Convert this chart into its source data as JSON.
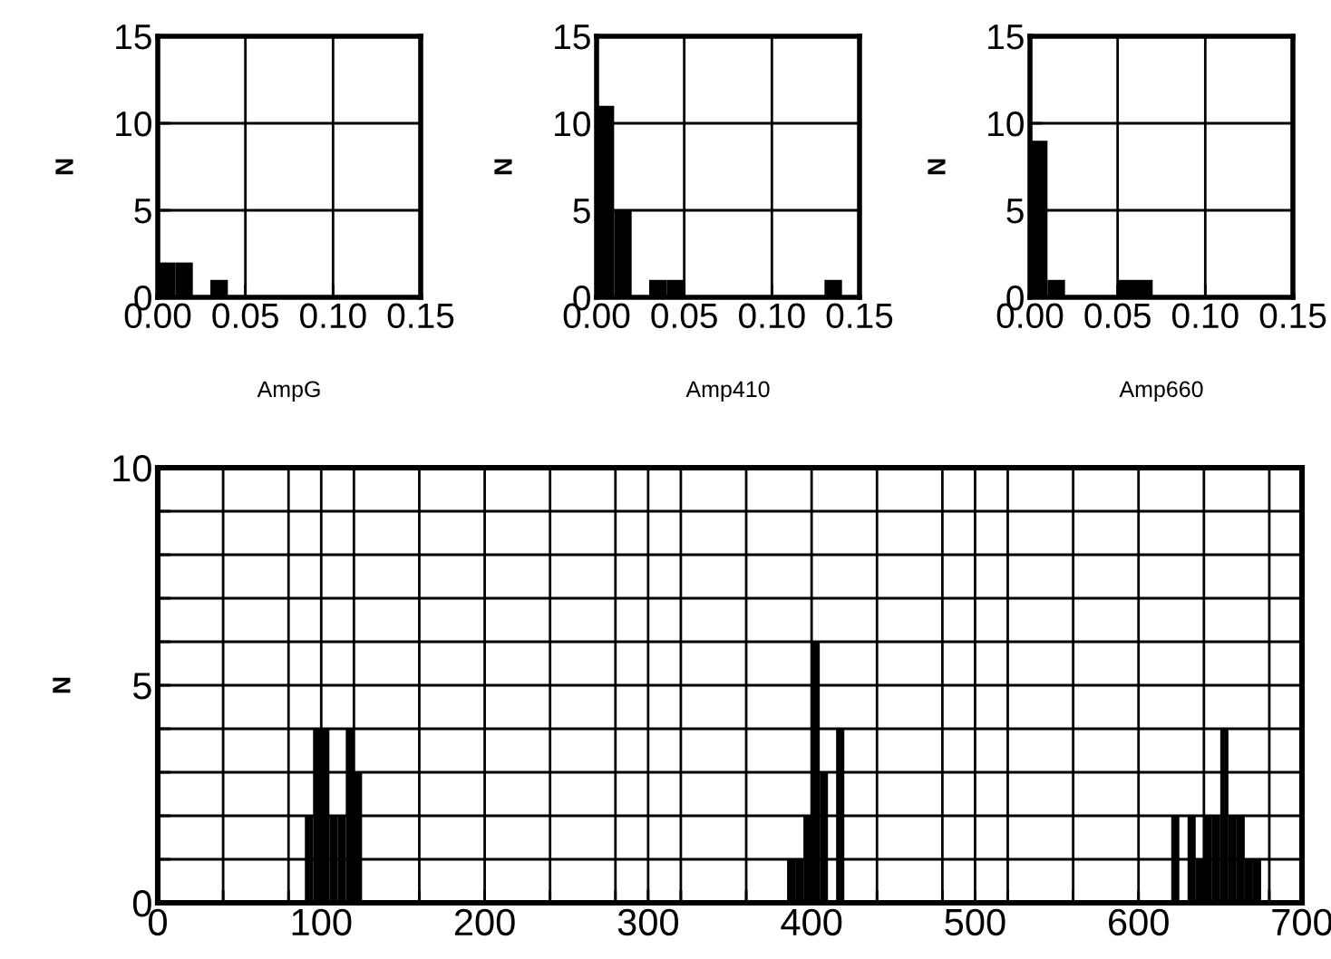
{
  "chart_data": [
    {
      "type": "histogram",
      "xlabel": "AmpG",
      "ylabel": "N",
      "color": "#000000",
      "bins": [
        0,
        0.01,
        0.02,
        0.03,
        0.04
      ],
      "values": [
        2,
        2,
        0,
        1
      ],
      "xlim": [
        0,
        0.15
      ],
      "ylim": [
        0,
        15
      ],
      "xticks": [
        {
          "value": 0,
          "label": "0.00"
        },
        {
          "value": 0.05,
          "label": "0.05"
        },
        {
          "value": 0.1,
          "label": "0.10"
        },
        {
          "value": 0.15,
          "label": "0.15"
        }
      ],
      "yticks": [
        0,
        5,
        10,
        15
      ],
      "grid": true
    },
    {
      "type": "histogram",
      "xlabel": "Amp410",
      "ylabel": "N",
      "color": "#000000",
      "bins": [
        0,
        0.01,
        0.02,
        0.03,
        0.04,
        0.05,
        0.13,
        0.14
      ],
      "values": [
        11,
        5,
        0,
        1,
        1,
        0,
        1
      ],
      "xlim": [
        0,
        0.15
      ],
      "ylim": [
        0,
        15
      ],
      "xticks": [
        {
          "value": 0,
          "label": "0.00"
        },
        {
          "value": 0.05,
          "label": "0.05"
        },
        {
          "value": 0.1,
          "label": "0.10"
        },
        {
          "value": 0.15,
          "label": "0.15"
        }
      ],
      "yticks": [
        0,
        5,
        10,
        15
      ],
      "grid": true
    },
    {
      "type": "histogram",
      "xlabel": "Amp660",
      "ylabel": "N",
      "color": "#000000",
      "bins": [
        0,
        0.01,
        0.02,
        0.05,
        0.06,
        0.07
      ],
      "values": [
        9,
        1,
        0,
        1,
        1
      ],
      "xlim": [
        0,
        0.15
      ],
      "ylim": [
        0,
        15
      ],
      "xticks": [
        {
          "value": 0,
          "label": "0.00"
        },
        {
          "value": 0.05,
          "label": "0.05"
        },
        {
          "value": 0.1,
          "label": "0.10"
        },
        {
          "value": 0.15,
          "label": "0.15"
        }
      ],
      "yticks": [
        0,
        5,
        10,
        15
      ],
      "grid": true
    },
    {
      "type": "histogram",
      "ylabel": "N",
      "color": "#000000",
      "bins": [
        90,
        95,
        100,
        105,
        110,
        115,
        120,
        125,
        385,
        390,
        395,
        400,
        405,
        410,
        415,
        420,
        620,
        625,
        630,
        635,
        640,
        645,
        650,
        655,
        660,
        665,
        670,
        675
      ],
      "values": [
        2,
        4,
        4,
        2,
        2,
        4,
        3,
        0,
        1,
        1,
        2,
        6,
        3,
        0,
        4,
        0,
        2,
        0,
        2,
        1,
        2,
        2,
        4,
        2,
        2,
        1,
        1
      ],
      "xlim": [
        0,
        700
      ],
      "ylim": [
        0,
        10
      ],
      "xticks": [
        0,
        {
          "value": 40,
          "label": null
        },
        {
          "value": 80,
          "label": null
        },
        100,
        {
          "value": 120,
          "label": null
        },
        {
          "value": 160,
          "label": null
        },
        200,
        {
          "value": 240,
          "label": null
        },
        {
          "value": 280,
          "label": null
        },
        300,
        {
          "value": 320,
          "label": null
        },
        {
          "value": 360,
          "label": null
        },
        400,
        {
          "value": 440,
          "label": null
        },
        {
          "value": 480,
          "label": null
        },
        500,
        {
          "value": 520,
          "label": null
        },
        {
          "value": 560,
          "label": null
        },
        600,
        {
          "value": 640,
          "label": null
        },
        {
          "value": 680,
          "label": null
        },
        700
      ],
      "yticks": [
        0,
        {
          "value": 1,
          "label": null
        },
        {
          "value": 2,
          "label": null
        },
        {
          "value": 3,
          "label": null
        },
        {
          "value": 4,
          "label": null
        },
        5,
        {
          "value": 6,
          "label": null
        },
        {
          "value": 7,
          "label": null
        },
        {
          "value": 8,
          "label": null
        },
        {
          "value": 9,
          "label": null
        },
        10
      ],
      "grid": true
    }
  ]
}
